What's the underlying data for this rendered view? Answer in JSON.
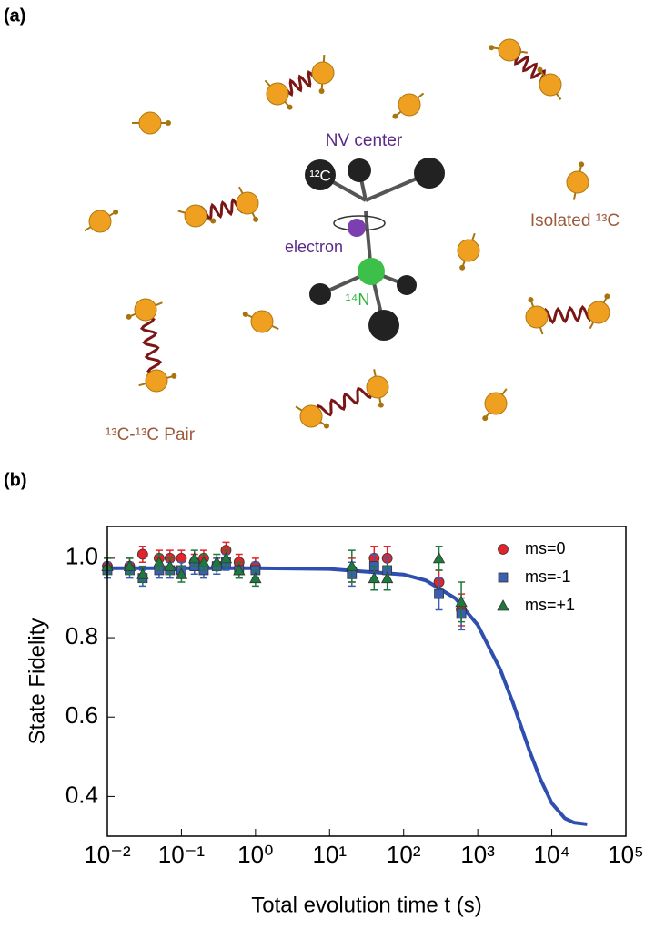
{
  "panel_a": {
    "label": "(a)",
    "nv_center": "NV center",
    "carbon12": "¹²C",
    "electron": "electron",
    "nitrogen14": "¹⁴N",
    "isolated": "Isolated ¹³C",
    "pair": "¹³C-¹³C Pair"
  },
  "panel_b": {
    "label": "(b)"
  },
  "chart_data": {
    "type": "scatter",
    "x_label": "Total evolution time t (s)",
    "y_label": "State Fidelity",
    "xscale": "log",
    "xlim": [
      0.01,
      100000
    ],
    "xticks": [
      {
        "value": 0.01,
        "label": "10⁻²"
      },
      {
        "value": 0.1,
        "label": "10⁻¹"
      },
      {
        "value": 1,
        "label": "10⁰"
      },
      {
        "value": 10,
        "label": "10¹"
      },
      {
        "value": 100,
        "label": "10²"
      },
      {
        "value": 1000,
        "label": "10³"
      },
      {
        "value": 10000,
        "label": "10⁴"
      },
      {
        "value": 100000,
        "label": "10⁵"
      }
    ],
    "ylim": [
      0.3,
      1.08
    ],
    "yticks": [
      0.4,
      0.6,
      0.8,
      {
        "value": 1,
        "label": "1.0"
      }
    ],
    "legend": "upper right",
    "series": [
      {
        "name": "ms=0",
        "color": "#e3242b",
        "marker": "circle",
        "x": [
          0.01,
          0.02,
          0.03,
          0.05,
          0.07,
          0.1,
          0.15,
          0.2,
          0.3,
          0.4,
          0.6,
          1,
          20,
          40,
          60,
          300,
          600
        ],
        "values": [
          0.98,
          0.98,
          1.01,
          1.0,
          1.0,
          1.0,
          0.99,
          1.0,
          0.98,
          1.02,
          0.99,
          0.98,
          0.97,
          1.0,
          1.0,
          0.94,
          0.87
        ],
        "errors": [
          0.02,
          0.02,
          0.02,
          0.02,
          0.02,
          0.02,
          0.02,
          0.02,
          0.02,
          0.02,
          0.02,
          0.02,
          0.03,
          0.03,
          0.03,
          0.03,
          0.04
        ]
      },
      {
        "name": "ms=-1",
        "color": "#3a5fb0",
        "marker": "square",
        "x": [
          0.01,
          0.02,
          0.03,
          0.05,
          0.07,
          0.1,
          0.15,
          0.2,
          0.3,
          0.4,
          0.6,
          1,
          20,
          40,
          60,
          300,
          600
        ],
        "values": [
          0.97,
          0.97,
          0.95,
          0.97,
          0.97,
          0.97,
          0.98,
          0.97,
          0.98,
          0.99,
          0.97,
          0.97,
          0.96,
          0.98,
          0.97,
          0.91,
          0.86
        ],
        "errors": [
          0.02,
          0.02,
          0.02,
          0.02,
          0.02,
          0.02,
          0.02,
          0.02,
          0.02,
          0.02,
          0.02,
          0.02,
          0.03,
          0.03,
          0.03,
          0.04,
          0.04
        ]
      },
      {
        "name": "ms=+1",
        "color": "#1e7a3c",
        "marker": "triangle",
        "x": [
          0.01,
          0.02,
          0.03,
          0.05,
          0.07,
          0.1,
          0.15,
          0.2,
          0.3,
          0.4,
          0.6,
          1,
          20,
          40,
          60,
          300,
          600
        ],
        "values": [
          0.98,
          0.98,
          0.96,
          0.99,
          0.98,
          0.96,
          1.0,
          0.99,
          0.99,
          1.0,
          0.97,
          0.95,
          0.98,
          0.95,
          0.95,
          1.0,
          0.89
        ],
        "errors": [
          0.02,
          0.02,
          0.02,
          0.02,
          0.02,
          0.02,
          0.02,
          0.02,
          0.02,
          0.02,
          0.02,
          0.02,
          0.04,
          0.03,
          0.03,
          0.03,
          0.05
        ]
      }
    ],
    "fit": {
      "color": "#2f4fb0",
      "x": [
        0.01,
        1,
        10,
        100,
        200,
        500,
        1000,
        2000,
        3000,
        5000,
        7000,
        10000,
        15000,
        20000,
        30000
      ],
      "values": [
        0.975,
        0.975,
        0.973,
        0.959,
        0.944,
        0.899,
        0.832,
        0.721,
        0.635,
        0.515,
        0.444,
        0.383,
        0.345,
        0.334,
        0.33
      ]
    }
  }
}
